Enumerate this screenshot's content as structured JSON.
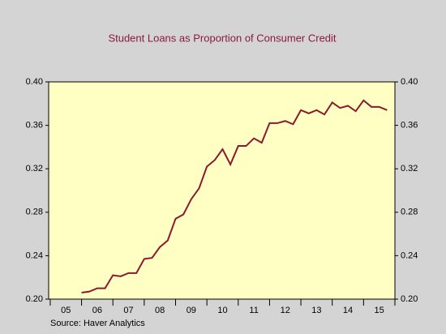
{
  "chart_data": {
    "type": "line",
    "title": "Student Loans as Proportion of Consumer Credit",
    "source": "Source:   Haver Analytics",
    "x": [
      2006,
      2006.25,
      2006.5,
      2006.75,
      2007,
      2007.25,
      2007.5,
      2007.75,
      2008,
      2008.25,
      2008.5,
      2008.75,
      2009,
      2009.25,
      2009.5,
      2009.75,
      2010,
      2010.25,
      2010.5,
      2010.75,
      2011,
      2011.25,
      2011.5,
      2011.75,
      2012,
      2012.25,
      2012.5,
      2012.75,
      2013,
      2013.25,
      2013.5,
      2013.75,
      2014,
      2014.25,
      2014.5,
      2014.75,
      2015,
      2015.25,
      2015.5,
      2015.75
    ],
    "series": [
      {
        "color": "#8b1a2e",
        "values": [
          0.206,
          0.207,
          0.21,
          0.21,
          0.222,
          0.221,
          0.224,
          0.224,
          0.237,
          0.238,
          0.248,
          0.254,
          0.274,
          0.278,
          0.292,
          0.302,
          0.322,
          0.328,
          0.338,
          0.324,
          0.341,
          0.341,
          0.348,
          0.344,
          0.362,
          0.362,
          0.364,
          0.361,
          0.374,
          0.371,
          0.374,
          0.37,
          0.381,
          0.376,
          0.378,
          0.373,
          0.383,
          0.377,
          0.377,
          0.374
        ]
      }
    ],
    "xlim": [
      2004.95,
      2016.0
    ],
    "xticks": [
      {
        "value": 2005.5,
        "label": "05"
      },
      {
        "value": 2006.5,
        "label": "06"
      },
      {
        "value": 2007.5,
        "label": "07"
      },
      {
        "value": 2008.5,
        "label": "08"
      },
      {
        "value": 2009.5,
        "label": "09"
      },
      {
        "value": 2010.5,
        "label": "10"
      },
      {
        "value": 2011.5,
        "label": "11"
      },
      {
        "value": 2012.5,
        "label": "12"
      },
      {
        "value": 2013.5,
        "label": "13"
      },
      {
        "value": 2014.5,
        "label": "14"
      },
      {
        "value": 2015.5,
        "label": "15"
      }
    ],
    "x_tick_marks": [
      2005,
      2006,
      2007,
      2008,
      2009,
      2010,
      2011,
      2012,
      2013,
      2014,
      2015,
      2016
    ],
    "ylim": [
      0.2,
      0.4
    ],
    "yticks": [
      {
        "value": 0.2,
        "label": "0.20"
      },
      {
        "value": 0.24,
        "label": "0.24"
      },
      {
        "value": 0.28,
        "label": "0.28"
      },
      {
        "value": 0.32,
        "label": "0.32"
      },
      {
        "value": 0.36,
        "label": "0.36"
      },
      {
        "value": 0.4,
        "label": "0.40"
      }
    ],
    "right_axis_mirror": true
  }
}
